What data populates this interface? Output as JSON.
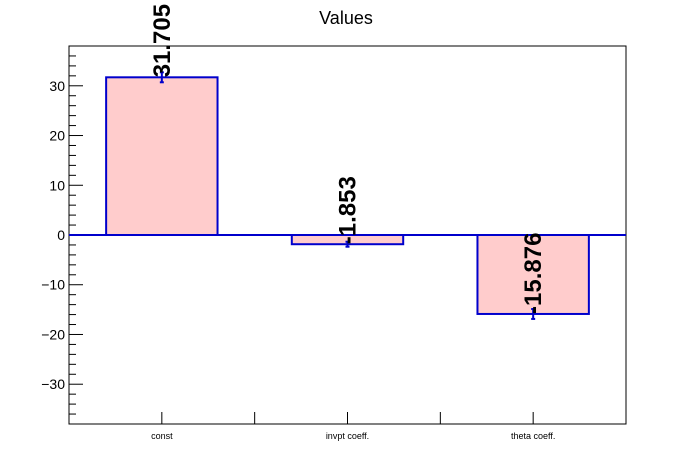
{
  "chart_data": {
    "type": "bar",
    "title": "Values",
    "categories": [
      "const",
      "invpt coeff.",
      "theta coeff."
    ],
    "values": [
      31.705,
      -1.853,
      -15.876
    ],
    "value_labels": [
      "31.705",
      "-1.853",
      "-15.876"
    ],
    "errors": [
      1.0,
      0.5,
      1.0
    ],
    "ylim": [
      -38,
      38
    ],
    "yticks": [
      -30,
      -20,
      -10,
      0,
      10,
      20,
      30
    ],
    "ytick_labels": [
      "−30",
      "−20",
      "−10",
      "0",
      "10",
      "20",
      "30"
    ],
    "xlabel": "",
    "ylabel": "",
    "grid": false,
    "colors": {
      "bar_fill": "#ffcccc",
      "bar_edge": "#0000cc",
      "zero_line": "#0000cc",
      "axis": "#000000"
    }
  }
}
